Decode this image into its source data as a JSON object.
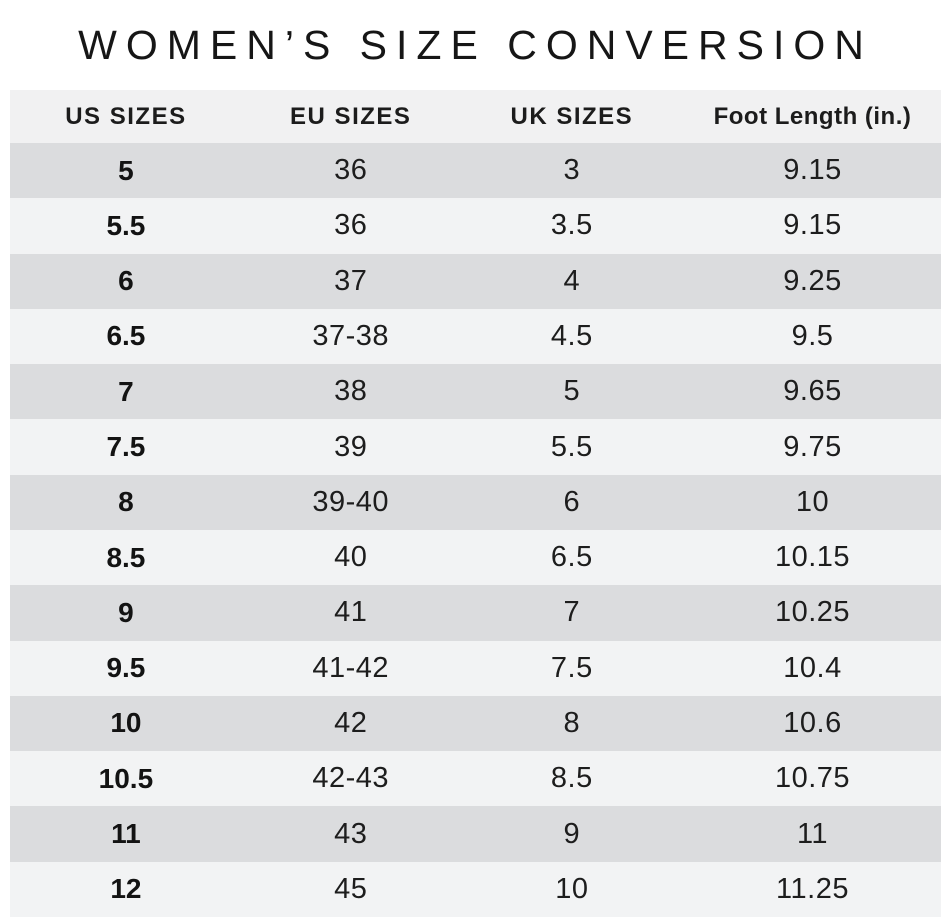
{
  "page": {
    "title": "WOMEN’S SIZE CONVERSION"
  },
  "colors": {
    "background": "#ffffff",
    "title_text": "#161616",
    "header_row_bg": "#f1f1f2",
    "stripe_dark": "#dbdcde",
    "stripe_light": "#f2f3f4",
    "cell_text": "#1d1d1d"
  },
  "chart_data": {
    "type": "table",
    "title": "WOMEN’S SIZE CONVERSION",
    "columns": [
      "US SIZES",
      "EU SIZES",
      "UK SIZES",
      "Foot Length (in.)"
    ],
    "rows": [
      [
        "5",
        "36",
        "3",
        "9.15"
      ],
      [
        "5.5",
        "36",
        "3.5",
        "9.15"
      ],
      [
        "6",
        "37",
        "4",
        "9.25"
      ],
      [
        "6.5",
        "37-38",
        "4.5",
        "9.5"
      ],
      [
        "7",
        "38",
        "5",
        "9.65"
      ],
      [
        "7.5",
        "39",
        "5.5",
        "9.75"
      ],
      [
        "8",
        "39-40",
        "6",
        "10"
      ],
      [
        "8.5",
        "40",
        "6.5",
        "10.15"
      ],
      [
        "9",
        "41",
        "7",
        "10.25"
      ],
      [
        "9.5",
        "41-42",
        "7.5",
        "10.4"
      ],
      [
        "10",
        "42",
        "8",
        "10.6"
      ],
      [
        "10.5",
        "42-43",
        "8.5",
        "10.75"
      ],
      [
        "11",
        "43",
        "9",
        "11"
      ],
      [
        "12",
        "45",
        "10",
        "11.25"
      ]
    ],
    "layout": {
      "striped": true,
      "first_data_row_shade": "dark",
      "bold_column": "US SIZES",
      "alignment": "center"
    }
  }
}
